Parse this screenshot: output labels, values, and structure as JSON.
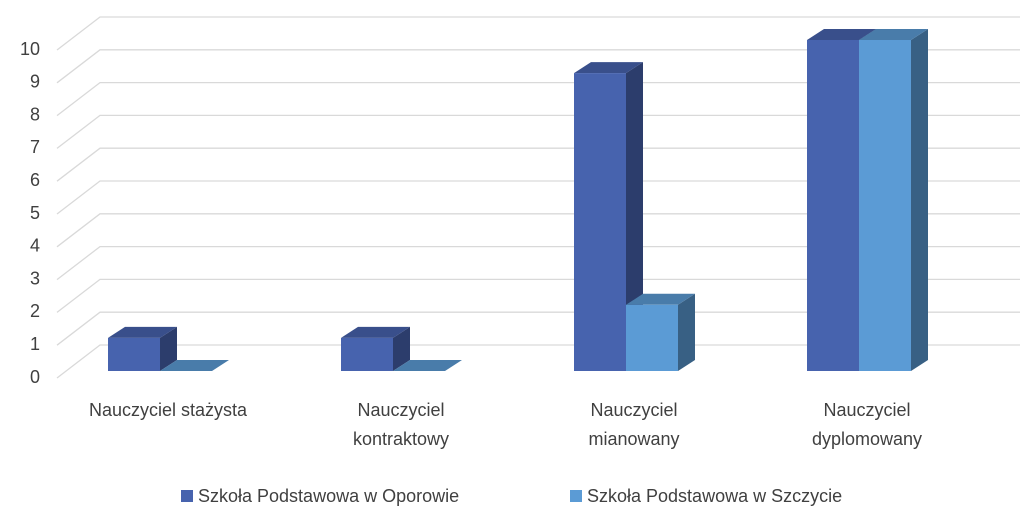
{
  "chart_data": {
    "type": "bar3d",
    "categories": [
      "Nauczyciel stażysta",
      "Nauczyciel\nkontraktowy",
      "Nauczyciel\nmianowany",
      "Nauczyciel\ndyplomowany"
    ],
    "series": [
      {
        "name": "Szkoła Podstawowa w Oporowie",
        "color": "#4763ae",
        "values": [
          1,
          1,
          9,
          10
        ]
      },
      {
        "name": "Szkoła Podstawowa w Szczycie",
        "color": "#5b9bd5",
        "values": [
          0,
          0,
          2,
          10
        ]
      }
    ],
    "ylim": [
      0,
      10
    ],
    "yticks": [
      0,
      1,
      2,
      3,
      4,
      5,
      6,
      7,
      8,
      9,
      10
    ],
    "grid": true
  }
}
